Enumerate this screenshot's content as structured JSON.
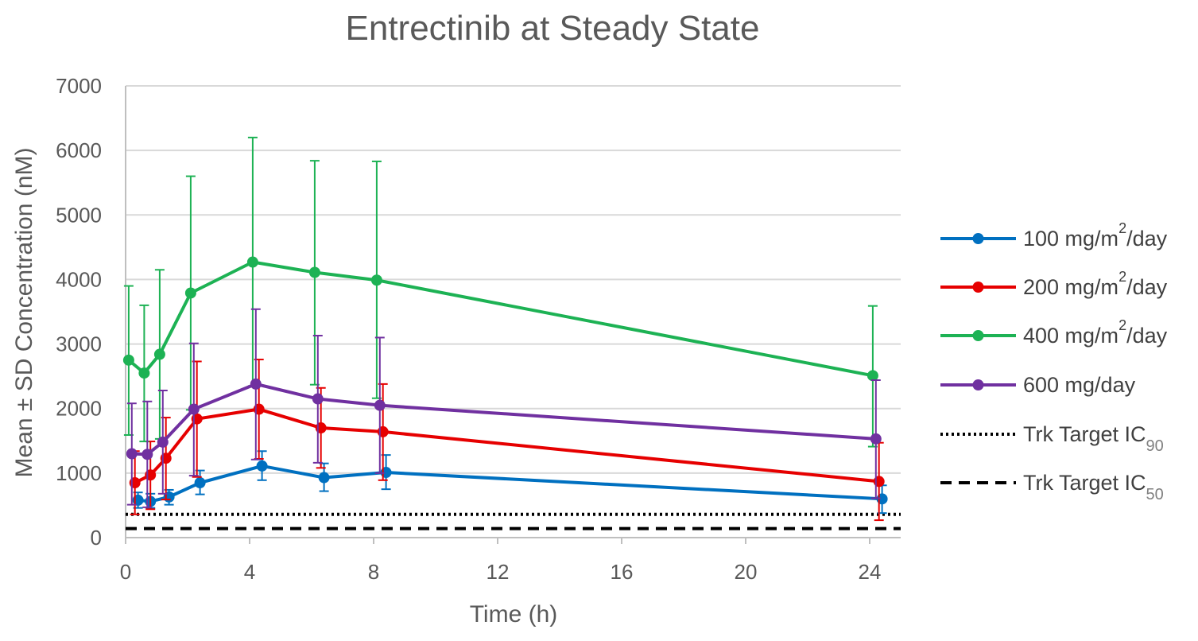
{
  "chart_data": {
    "type": "line",
    "title": "Entrectinib at Steady State",
    "xlabel": "Time (h)",
    "ylabel": "Mean ± SD Concentration (nM)",
    "xlim": [
      0,
      25
    ],
    "ylim": [
      0,
      7000
    ],
    "x_ticks": [
      "0",
      "4",
      "8",
      "12",
      "16",
      "20",
      "24"
    ],
    "y_ticks": [
      "0",
      "1000",
      "2000",
      "3000",
      "4000",
      "5000",
      "6000",
      "7000"
    ],
    "grid": "horizontal",
    "legend_position": "right",
    "series": [
      {
        "name_main": "100 mg/m",
        "name_sup": "2",
        "name_tail": "/day",
        "color": "#0070c0",
        "points": [
          {
            "x": 0.4,
            "y": 580,
            "lo": 460,
            "hi": 700
          },
          {
            "x": 0.8,
            "y": 560,
            "lo": 460,
            "hi": 680
          },
          {
            "x": 1.4,
            "y": 630,
            "lo": 510,
            "hi": 740
          },
          {
            "x": 2.4,
            "y": 850,
            "lo": 670,
            "hi": 1040
          },
          {
            "x": 4.4,
            "y": 1110,
            "lo": 890,
            "hi": 1340
          },
          {
            "x": 6.4,
            "y": 930,
            "lo": 720,
            "hi": 1150
          },
          {
            "x": 8.4,
            "y": 1010,
            "lo": 750,
            "hi": 1280
          },
          {
            "x": 24.4,
            "y": 600,
            "lo": 380,
            "hi": 810
          }
        ]
      },
      {
        "name_main": "200 mg/m",
        "name_sup": "2",
        "name_tail": "/day",
        "color": "#e60000",
        "points": [
          {
            "x": 0.3,
            "y": 850,
            "lo": 360,
            "hi": 1340
          },
          {
            "x": 0.8,
            "y": 970,
            "lo": 440,
            "hi": 1490
          },
          {
            "x": 1.3,
            "y": 1230,
            "lo": 590,
            "hi": 1860
          },
          {
            "x": 2.3,
            "y": 1840,
            "lo": 940,
            "hi": 2730
          },
          {
            "x": 4.3,
            "y": 1990,
            "lo": 1220,
            "hi": 2760
          },
          {
            "x": 6.3,
            "y": 1700,
            "lo": 1080,
            "hi": 2320
          },
          {
            "x": 8.3,
            "y": 1640,
            "lo": 890,
            "hi": 2380
          },
          {
            "x": 24.3,
            "y": 870,
            "lo": 270,
            "hi": 1470
          }
        ]
      },
      {
        "name_main": "400 mg/m",
        "name_sup": "2",
        "name_tail": "/day",
        "color": "#1db254",
        "points": [
          {
            "x": 0.1,
            "y": 2750,
            "lo": 1590,
            "hi": 3900
          },
          {
            "x": 0.6,
            "y": 2550,
            "lo": 1490,
            "hi": 3600
          },
          {
            "x": 1.1,
            "y": 2840,
            "lo": 1530,
            "hi": 4150
          },
          {
            "x": 2.1,
            "y": 3790,
            "lo": 1980,
            "hi": 5600
          },
          {
            "x": 4.1,
            "y": 4270,
            "lo": 2350,
            "hi": 6200
          },
          {
            "x": 6.1,
            "y": 4110,
            "lo": 2370,
            "hi": 5840
          },
          {
            "x": 8.1,
            "y": 3990,
            "lo": 2160,
            "hi": 5830
          },
          {
            "x": 24.1,
            "y": 2510,
            "lo": 1410,
            "hi": 3590
          }
        ]
      },
      {
        "name_main": "600 mg/day",
        "name_sup": "",
        "name_tail": "",
        "color": "#7030a0",
        "points": [
          {
            "x": 0.2,
            "y": 1300,
            "lo": 510,
            "hi": 2080
          },
          {
            "x": 0.7,
            "y": 1290,
            "lo": 470,
            "hi": 2110
          },
          {
            "x": 1.2,
            "y": 1480,
            "lo": 680,
            "hi": 2280
          },
          {
            "x": 2.2,
            "y": 1990,
            "lo": 960,
            "hi": 3010
          },
          {
            "x": 4.2,
            "y": 2380,
            "lo": 1210,
            "hi": 3540
          },
          {
            "x": 6.2,
            "y": 2150,
            "lo": 1160,
            "hi": 3130
          },
          {
            "x": 8.2,
            "y": 2050,
            "lo": 1000,
            "hi": 3100
          },
          {
            "x": 24.2,
            "y": 1530,
            "lo": 610,
            "hi": 2440
          }
        ]
      }
    ],
    "reference_lines": [
      {
        "name_main": "Trk Target IC",
        "name_sub": "90",
        "y": 360,
        "style": "dotted",
        "color": "#000000"
      },
      {
        "name_main": "Trk Target IC",
        "name_sub": "50",
        "y": 140,
        "style": "dashed",
        "color": "#000000"
      }
    ]
  }
}
